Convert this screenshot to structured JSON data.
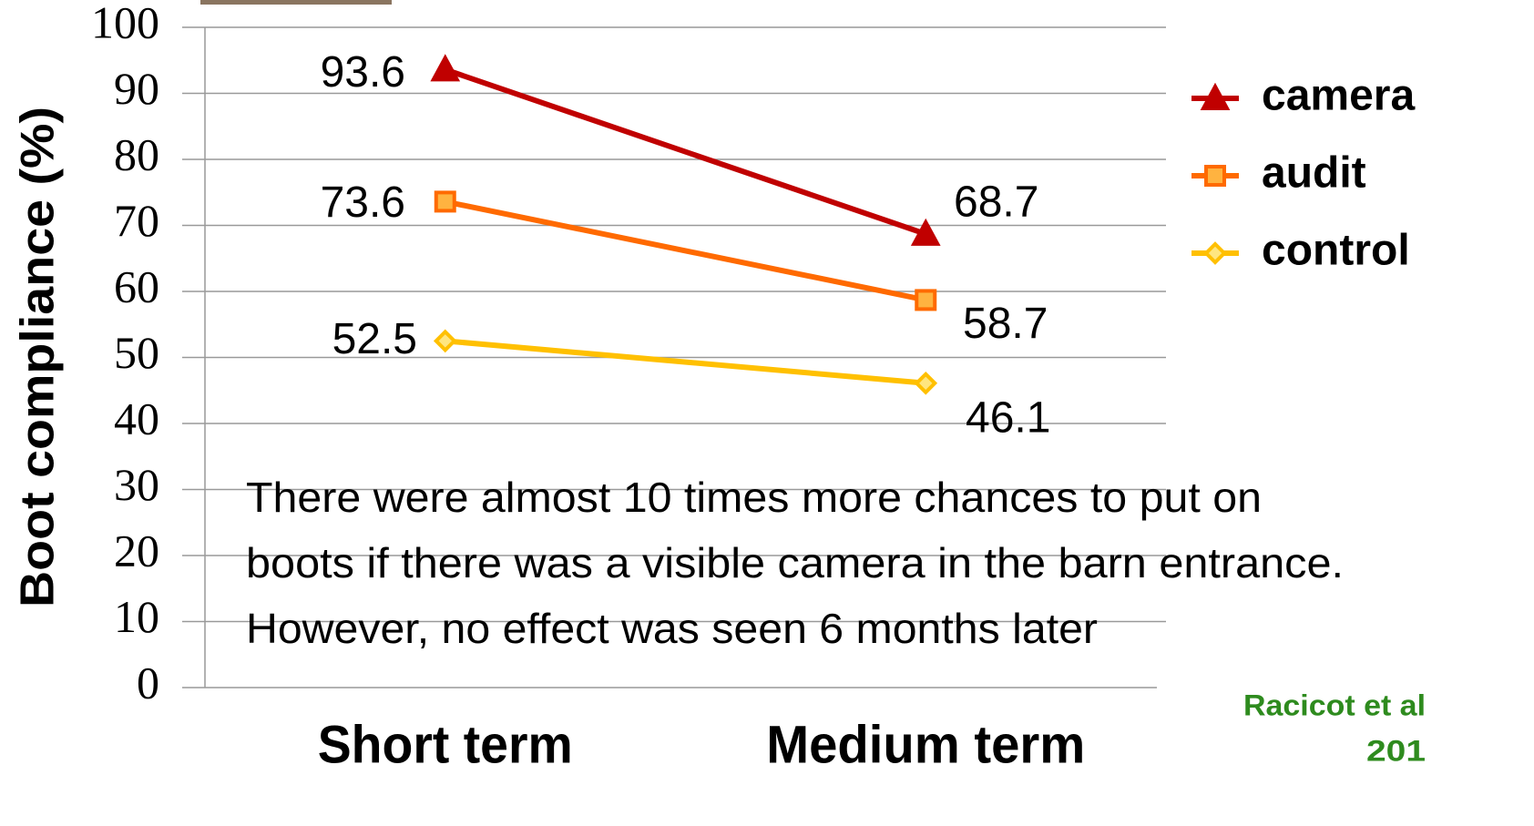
{
  "chart_data": {
    "type": "line",
    "y_label": "Boot compliance (%)",
    "categories": [
      "Short term",
      "Medium term"
    ],
    "series": [
      {
        "name": "camera",
        "color": "#c00000",
        "marker": "triangle",
        "values": [
          93.6,
          68.7
        ]
      },
      {
        "name": "audit",
        "color": "#ff6a00",
        "marker": "square",
        "values": [
          73.6,
          58.7
        ]
      },
      {
        "name": "control",
        "color": "#ffc000",
        "marker": "diamond",
        "values": [
          52.5,
          46.1
        ]
      }
    ],
    "ylim": [
      0,
      100
    ],
    "yticks": [
      0,
      10,
      20,
      30,
      40,
      50,
      60,
      70,
      80,
      90,
      100
    ],
    "grid": true,
    "legend": "right",
    "annotation": [
      "There were almost 10 times more chances to put on",
      "boots if there was a visible camera in the barn entrance.",
      "However, no effect was seen 6 months later"
    ],
    "source": [
      "Racicot et al",
      "201"
    ]
  }
}
